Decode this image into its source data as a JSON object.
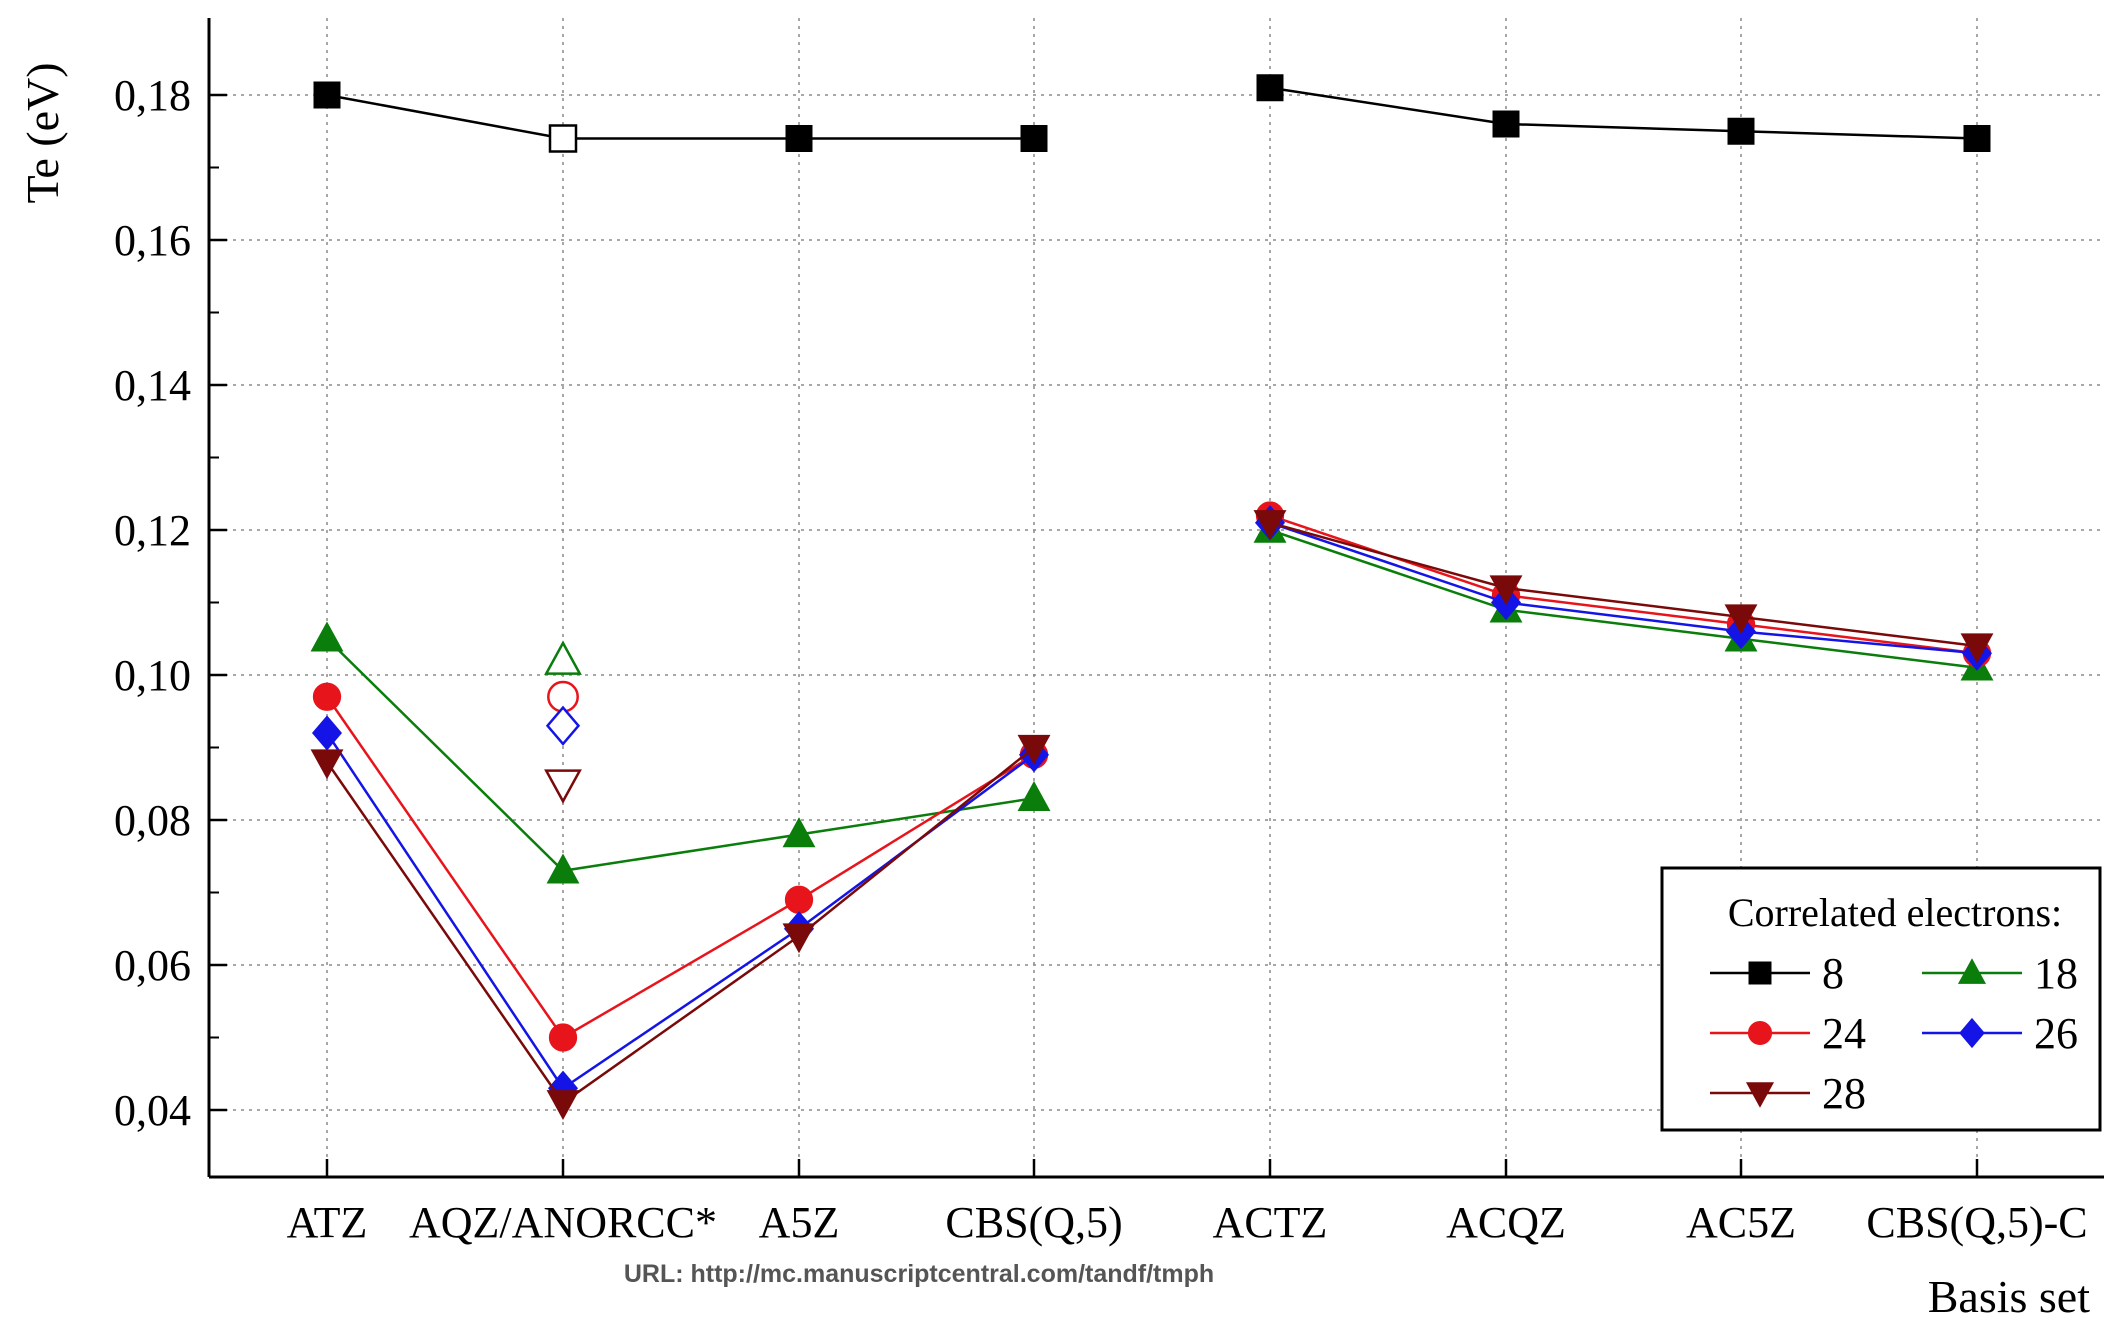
{
  "chart_data": {
    "type": "line",
    "ylabel": "Te (eV)",
    "xlabel": "Basis set",
    "ylim": [
      0.03,
      0.19
    ],
    "yticks": [
      0.04,
      0.06,
      0.08,
      0.1,
      0.12,
      0.14,
      0.16,
      0.18
    ],
    "ytick_labels": [
      "0,04",
      "0,06",
      "0,08",
      "0,10",
      "0,12",
      "0,14",
      "0,16",
      "0,18"
    ],
    "categories": [
      "ATZ",
      "AQZ/ANORCC*",
      "A5Z",
      "CBS(Q,5)",
      "ACTZ",
      "ACQZ",
      "AC5Z",
      "CBS(Q,5)-C"
    ],
    "grid": true,
    "legend": {
      "title": "Correlated electrons:",
      "position": "bottom-right"
    },
    "series": [
      {
        "name": "8",
        "color": "#000000",
        "marker": "square",
        "segments": [
          [
            0.18,
            0.174,
            0.174,
            0.174
          ],
          [
            0.181,
            0.176,
            0.175,
            0.174
          ]
        ]
      },
      {
        "name": "18",
        "color": "#0a7d0a",
        "marker": "triangle-up",
        "segments": [
          [
            0.105,
            0.073,
            0.078,
            0.083
          ],
          [
            0.12,
            0.109,
            0.105,
            0.101
          ]
        ]
      },
      {
        "name": "24",
        "color": "#e8141c",
        "marker": "circle",
        "segments": [
          [
            0.097,
            0.05,
            0.069,
            0.089
          ],
          [
            0.122,
            0.111,
            0.107,
            0.103
          ]
        ]
      },
      {
        "name": "26",
        "color": "#1414e6",
        "marker": "diamond",
        "segments": [
          [
            0.092,
            0.043,
            0.065,
            0.089
          ],
          [
            0.121,
            0.11,
            0.106,
            0.103
          ]
        ]
      },
      {
        "name": "28",
        "color": "#7a0a0a",
        "marker": "triangle-down",
        "segments": [
          [
            0.088,
            0.041,
            0.064,
            0.09
          ],
          [
            0.121,
            0.112,
            0.108,
            0.104
          ]
        ]
      }
    ],
    "open_markers": {
      "category": "AQZ/ANORCC*",
      "points": [
        {
          "series": "8",
          "value": 0.174
        },
        {
          "series": "18",
          "value": 0.102
        },
        {
          "series": "24",
          "value": 0.097
        },
        {
          "series": "26",
          "value": 0.093
        },
        {
          "series": "28",
          "value": 0.085
        }
      ]
    }
  },
  "footer": {
    "url": "URL: http://mc.manuscriptcentral.com/tandf/tmph"
  }
}
